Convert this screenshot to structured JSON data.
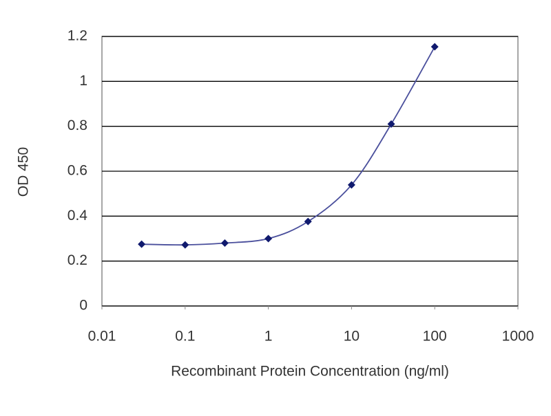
{
  "chart_data": {
    "type": "line",
    "xlabel": "Recombinant Protein Concentration (ng/ml)",
    "ylabel": "OD 450",
    "x": [
      0.03,
      0.1,
      0.3,
      1,
      3,
      10,
      30,
      100
    ],
    "series": [
      {
        "color": "#4a4f9c",
        "marker_color": "#101a6e",
        "values": [
          0.275,
          0.272,
          0.28,
          0.3,
          0.376,
          0.539,
          0.81,
          1.154
        ]
      }
    ],
    "xscale": "log",
    "xlim": [
      0.01,
      1000
    ],
    "xticks": [
      0.01,
      0.1,
      1,
      10,
      100,
      1000
    ],
    "ylim": [
      0,
      1.2
    ],
    "yticks": [
      0,
      0.2,
      0.4,
      0.6,
      0.8,
      1,
      1.2
    ],
    "grid": true
  }
}
